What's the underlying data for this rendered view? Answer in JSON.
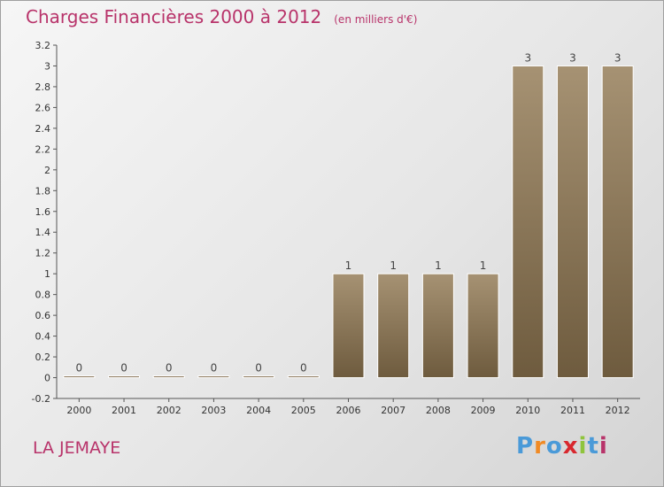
{
  "header": {
    "title": "Charges Financières 2000 à 2012",
    "subtitle": "(en milliers d'€)"
  },
  "footer": {
    "commune": "LA JEMAYE"
  },
  "logo": {
    "letters": [
      "P",
      "r",
      "o",
      "x",
      "i",
      "t",
      "i"
    ],
    "colors": [
      "#4a9ad8",
      "#f08a24",
      "#4a9ad8",
      "#d8282e",
      "#8fc43c",
      "#4a9ad8",
      "#b8336a"
    ]
  },
  "colors": {
    "bar_top": "#a69273",
    "bar_bottom": "#6e5b3e",
    "accent": "#b8336a"
  },
  "chart_data": {
    "type": "bar",
    "title": "Charges Financières 2000 à 2012",
    "subtitle": "(en milliers d'€)",
    "categories": [
      "2000",
      "2001",
      "2002",
      "2003",
      "2004",
      "2005",
      "2006",
      "2007",
      "2008",
      "2009",
      "2010",
      "2011",
      "2012"
    ],
    "values": [
      0,
      0,
      0,
      0,
      0,
      0,
      1,
      1,
      1,
      1,
      3,
      3,
      3
    ],
    "data_labels": [
      "0",
      "0",
      "0",
      "0",
      "0",
      "0",
      "1",
      "1",
      "1",
      "1",
      "3",
      "3",
      "3"
    ],
    "ylim": [
      -0.2,
      3.2
    ],
    "yticks": [
      "-0.2",
      "0",
      "0.2",
      "0.4",
      "0.6",
      "0.8",
      "1",
      "1.2",
      "1.4",
      "1.6",
      "1.8",
      "2",
      "2.2",
      "2.4",
      "2.6",
      "2.8",
      "3",
      "3.2"
    ],
    "grid": false,
    "xlabel": "",
    "ylabel": ""
  }
}
